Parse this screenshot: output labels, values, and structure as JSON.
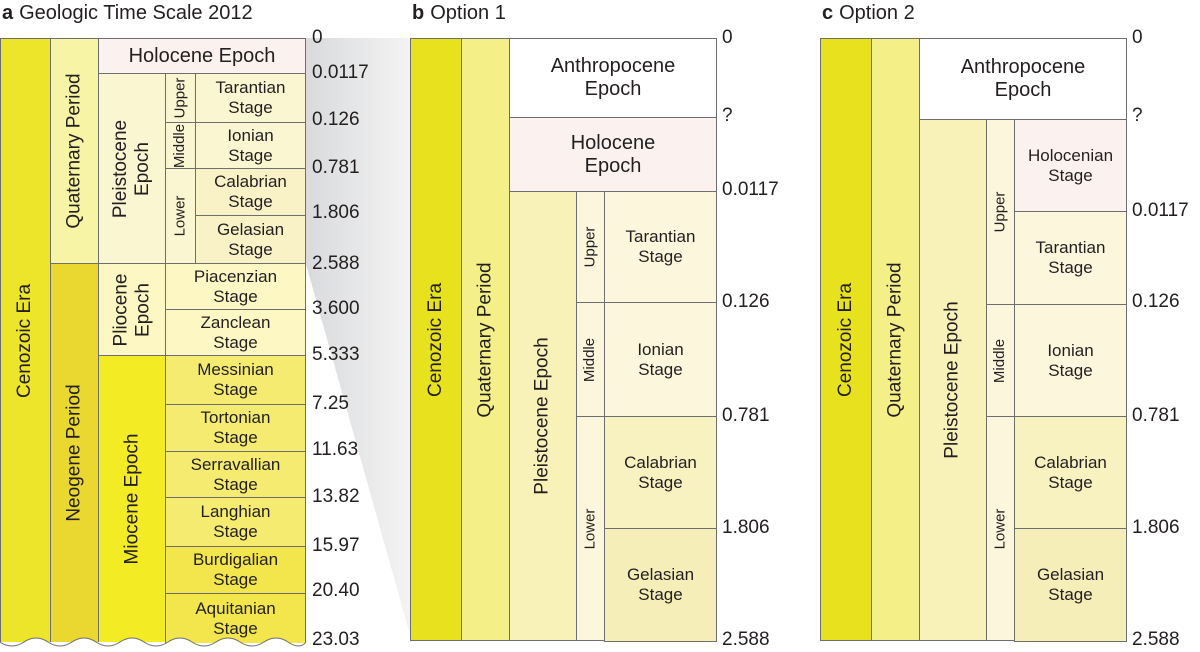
{
  "panels": {
    "a": {
      "letter": "a",
      "title": "Geologic Time Scale 2012"
    },
    "b": {
      "letter": "b",
      "title": "Option 1"
    },
    "c": {
      "letter": "c",
      "title": "Option 2"
    }
  },
  "panel_a": {
    "era": "Cenozoic Era",
    "quaternary": "Quaternary Period",
    "neogene": "Neogene Period",
    "holocene": "Holocene Epoch",
    "pleistocene": "Pleistocene\nEpoch",
    "pliocene": "Pliocene\nEpoch",
    "miocene": "Miocene Epoch",
    "upper": "Upper",
    "middle": "Middle",
    "lower": "Lower",
    "stages": [
      "Tarantian\nStage",
      "Ionian\nStage",
      "Calabrian\nStage",
      "Gelasian\nStage",
      "Piacenzian\nStage",
      "Zanclean\nStage",
      "Messinian\nStage",
      "Tortonian\nStage",
      "Serravallian\nStage",
      "Langhian\nStage",
      "Burdigalian\nStage",
      "Aquitanian\nStage"
    ],
    "ticks": [
      "0",
      "0.0117",
      "0.126",
      "0.781",
      "1.806",
      "2.588",
      "3.600",
      "5.333",
      "7.25",
      "11.63",
      "13.82",
      "15.97",
      "20.40",
      "23.03"
    ]
  },
  "panel_b": {
    "era": "Cenozoic Era",
    "period": "Quaternary Period",
    "anthropocene": "Anthropocene\nEpoch",
    "holocene": "Holocene\nEpoch",
    "pleistocene": "Pleistocene Epoch",
    "upper": "Upper",
    "middle": "Middle",
    "lower": "Lower",
    "stages": [
      "Tarantian\nStage",
      "Ionian\nStage",
      "Calabrian\nStage",
      "Gelasian\nStage"
    ],
    "ticks": [
      "0",
      "?",
      "0.0117",
      "0.126",
      "0.781",
      "1.806",
      "2.588"
    ]
  },
  "panel_c": {
    "era": "Cenozoic Era",
    "period": "Quaternary Period",
    "anthropocene": "Anthropocene\nEpoch",
    "pleistocene": "Pleistocene Epoch",
    "upper": "Upper",
    "middle": "Middle",
    "lower": "Lower",
    "stages": [
      "Holocenian\nStage",
      "Tarantian\nStage",
      "Ionian\nStage",
      "Calabrian\nStage",
      "Gelasian\nStage"
    ],
    "ticks": [
      "0",
      "?",
      "0.0117",
      "0.126",
      "0.781",
      "1.806",
      "2.588"
    ]
  }
}
